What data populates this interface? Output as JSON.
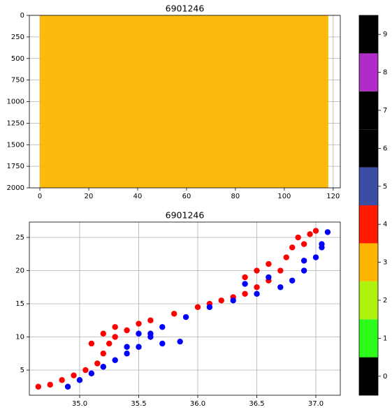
{
  "chart_data": [
    {
      "type": "area",
      "title": "6901246",
      "x": [
        0,
        118
      ],
      "values": [
        2000,
        2000
      ],
      "color": "#fdb500",
      "xlim": [
        -4.3,
        122.9
      ],
      "xticks": [
        0,
        20,
        40,
        60,
        80,
        100,
        120
      ],
      "ylim": [
        2000,
        0
      ],
      "yticks": [
        0,
        250,
        500,
        750,
        1000,
        1250,
        1500,
        1750,
        2000
      ],
      "grid": true
    },
    {
      "type": "scatter",
      "title": "6901246",
      "series": [
        {
          "color": "#ff0000",
          "x": [
            34.65,
            34.75,
            34.85,
            34.95,
            35.05,
            35.15,
            35.2,
            35.25,
            35.3,
            35.4,
            35.5,
            35.6,
            35.8,
            36.0,
            36.2,
            36.4,
            36.5,
            36.6,
            36.7,
            36.75,
            36.8,
            36.85,
            36.95,
            37.0,
            36.9,
            36.6,
            36.5,
            36.4,
            35.1,
            35.2,
            35.3,
            36.1,
            36.3
          ],
          "values": [
            2.5,
            2.8,
            3.5,
            4.2,
            5,
            6,
            7.5,
            9,
            10,
            11,
            12,
            12.5,
            13.5,
            14.5,
            15.5,
            16.5,
            17.5,
            18.5,
            20,
            22,
            23.5,
            25,
            25.5,
            26,
            24,
            21,
            20,
            19,
            9,
            10.5,
            11.5,
            15,
            16
          ]
        },
        {
          "color": "#0000ff",
          "x": [
            34.9,
            35.0,
            35.1,
            35.2,
            35.3,
            35.4,
            35.5,
            35.6,
            35.5,
            35.7,
            35.9,
            36.1,
            36.3,
            36.5,
            36.7,
            36.8,
            36.9,
            37.0,
            37.05,
            37.1,
            36.9,
            36.6,
            36.4,
            35.7,
            35.85,
            35.4,
            35.6,
            37.05
          ],
          "values": [
            2.5,
            3.5,
            4.5,
            5.5,
            6.5,
            7.5,
            8.5,
            10,
            10.5,
            11.5,
            13,
            14.5,
            15.5,
            16.5,
            17.5,
            18.5,
            20,
            22,
            24,
            25.8,
            21.5,
            19,
            18,
            9,
            9.3,
            8.5,
            10.5,
            23.5
          ]
        }
      ],
      "xlim": [
        34.574,
        37.207
      ],
      "xticks": [
        {
          "value": 35,
          "label": "35.0"
        },
        {
          "value": 35.5,
          "label": "35.5"
        },
        {
          "value": 36,
          "label": "36.0"
        },
        {
          "value": 36.5,
          "label": "36.5"
        },
        {
          "value": 37,
          "label": "37.0"
        }
      ],
      "ylim": [
        1.21,
        27.32
      ],
      "yticks": [
        5,
        10,
        15,
        20,
        25
      ],
      "grid": true
    },
    {
      "type": "colorbar",
      "values": [
        0,
        1,
        2,
        3,
        4,
        5,
        6,
        7,
        8,
        9
      ],
      "colors": [
        "#000000",
        "#2dfc1a",
        "#aef20e",
        "#fdb500",
        "#ff1a00",
        "#3a4ea6",
        "#000000",
        "#000000",
        "#b02bc8",
        "#000000"
      ],
      "ylim": [
        -0.5,
        9.5
      ],
      "yticks": [
        0,
        1,
        2,
        3,
        4,
        5,
        6,
        7,
        8,
        9
      ]
    }
  ]
}
